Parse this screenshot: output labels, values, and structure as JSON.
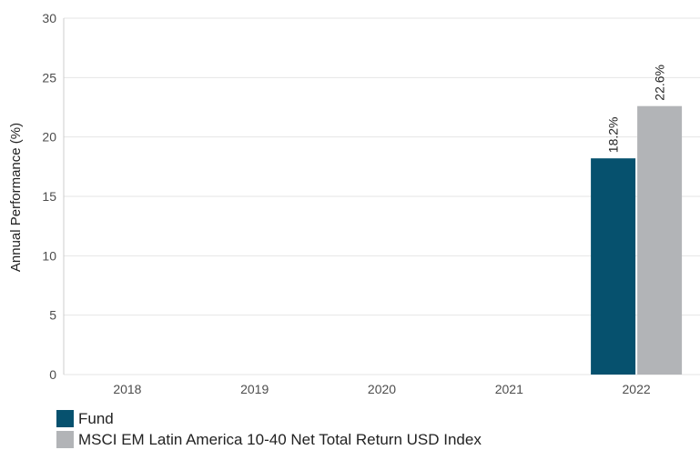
{
  "chart_data": {
    "type": "bar",
    "categories": [
      "2018",
      "2019",
      "2020",
      "2021",
      "2022"
    ],
    "series": [
      {
        "name": "Fund",
        "color": "#06516e",
        "values": [
          null,
          null,
          null,
          null,
          18.2
        ],
        "labels": [
          "",
          "",
          "",
          "",
          "18.2%"
        ]
      },
      {
        "name": "MSCI EM Latin America 10-40 Net Total Return USD Index",
        "color": "#b2b4b7",
        "values": [
          null,
          null,
          null,
          null,
          22.6
        ],
        "labels": [
          "",
          "",
          "",
          "",
          "22.6%"
        ]
      }
    ],
    "ylabel": "Annual Performance (%)",
    "ylim": [
      0,
      30
    ],
    "yticks": [
      "0",
      "5",
      "10",
      "15",
      "20",
      "25",
      "30"
    ],
    "grid": true,
    "legend_position": "bottom-left"
  }
}
